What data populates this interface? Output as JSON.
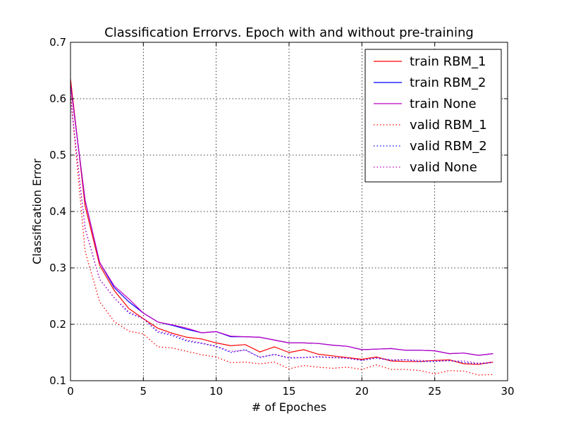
{
  "chart_data": {
    "type": "line",
    "title": "Classification Errorvs. Epoch with and without pre-training",
    "xlabel": "# of Epoches",
    "ylabel": "Classification Error",
    "xlim": [
      0,
      30
    ],
    "ylim": [
      0.1,
      0.7
    ],
    "xticks": [
      "0",
      "5",
      "10",
      "15",
      "20",
      "25",
      "30"
    ],
    "yticks": [
      "0.1",
      "0.2",
      "0.3",
      "0.4",
      "0.5",
      "0.6",
      "0.7"
    ],
    "grid": true,
    "legend_position": "top-right",
    "x": [
      0,
      1,
      2,
      3,
      4,
      5,
      6,
      7,
      8,
      9,
      10,
      11,
      12,
      13,
      14,
      15,
      16,
      17,
      18,
      19,
      20,
      21,
      22,
      23,
      24,
      25,
      26,
      27,
      28,
      29
    ],
    "series": [
      {
        "name": "train RBM_1",
        "color": "#ff0000",
        "style": "solid",
        "values": [
          0.635,
          0.41,
          0.305,
          0.26,
          0.228,
          0.21,
          0.193,
          0.184,
          0.177,
          0.174,
          0.167,
          0.162,
          0.164,
          0.151,
          0.16,
          0.15,
          0.155,
          0.147,
          0.144,
          0.141,
          0.138,
          0.142,
          0.135,
          0.134,
          0.134,
          0.136,
          0.137,
          0.13,
          0.129,
          0.133
        ]
      },
      {
        "name": "train RBM_2",
        "color": "#0000ff",
        "style": "solid",
        "values": [
          0.625,
          0.42,
          0.31,
          0.265,
          0.24,
          0.22,
          0.204,
          0.198,
          0.191,
          0.185,
          0.187,
          0.178,
          0.178,
          0.177,
          0.172,
          0.167,
          0.167,
          0.166,
          0.163,
          0.161,
          0.155,
          0.156,
          0.157,
          0.154,
          0.154,
          0.153,
          0.148,
          0.149,
          0.145,
          0.148
        ]
      },
      {
        "name": "train None",
        "color": "#bf00bf",
        "style": "solid",
        "values": [
          0.625,
          0.42,
          0.31,
          0.268,
          0.245,
          0.22,
          0.204,
          0.199,
          0.193,
          0.185,
          0.187,
          0.179,
          0.178,
          0.177,
          0.172,
          0.167,
          0.167,
          0.166,
          0.163,
          0.161,
          0.155,
          0.156,
          0.157,
          0.154,
          0.154,
          0.153,
          0.148,
          0.149,
          0.145,
          0.148
        ]
      },
      {
        "name": "valid RBM_1",
        "color": "#ff0000",
        "style": "dotted",
        "values": [
          0.61,
          0.33,
          0.24,
          0.205,
          0.188,
          0.183,
          0.16,
          0.158,
          0.152,
          0.146,
          0.142,
          0.132,
          0.133,
          0.13,
          0.133,
          0.121,
          0.127,
          0.124,
          0.122,
          0.124,
          0.12,
          0.128,
          0.12,
          0.12,
          0.118,
          0.112,
          0.118,
          0.117,
          0.11,
          0.111
        ]
      },
      {
        "name": "valid RBM_2",
        "color": "#0000ff",
        "style": "dotted",
        "values": [
          0.6,
          0.37,
          0.28,
          0.247,
          0.22,
          0.21,
          0.186,
          0.18,
          0.17,
          0.166,
          0.161,
          0.15,
          0.155,
          0.141,
          0.147,
          0.14,
          0.141,
          0.142,
          0.141,
          0.14,
          0.136,
          0.14,
          0.136,
          0.137,
          0.134,
          0.134,
          0.136,
          0.132,
          0.13,
          0.132
        ]
      },
      {
        "name": "valid None",
        "color": "#bf00bf",
        "style": "dotted",
        "values": [
          0.6,
          0.37,
          0.28,
          0.247,
          0.222,
          0.21,
          0.188,
          0.182,
          0.172,
          0.167,
          0.161,
          0.152,
          0.154,
          0.142,
          0.146,
          0.141,
          0.141,
          0.143,
          0.141,
          0.14,
          0.136,
          0.141,
          0.137,
          0.137,
          0.136,
          0.135,
          0.135,
          0.135,
          0.131,
          0.133
        ]
      }
    ]
  }
}
